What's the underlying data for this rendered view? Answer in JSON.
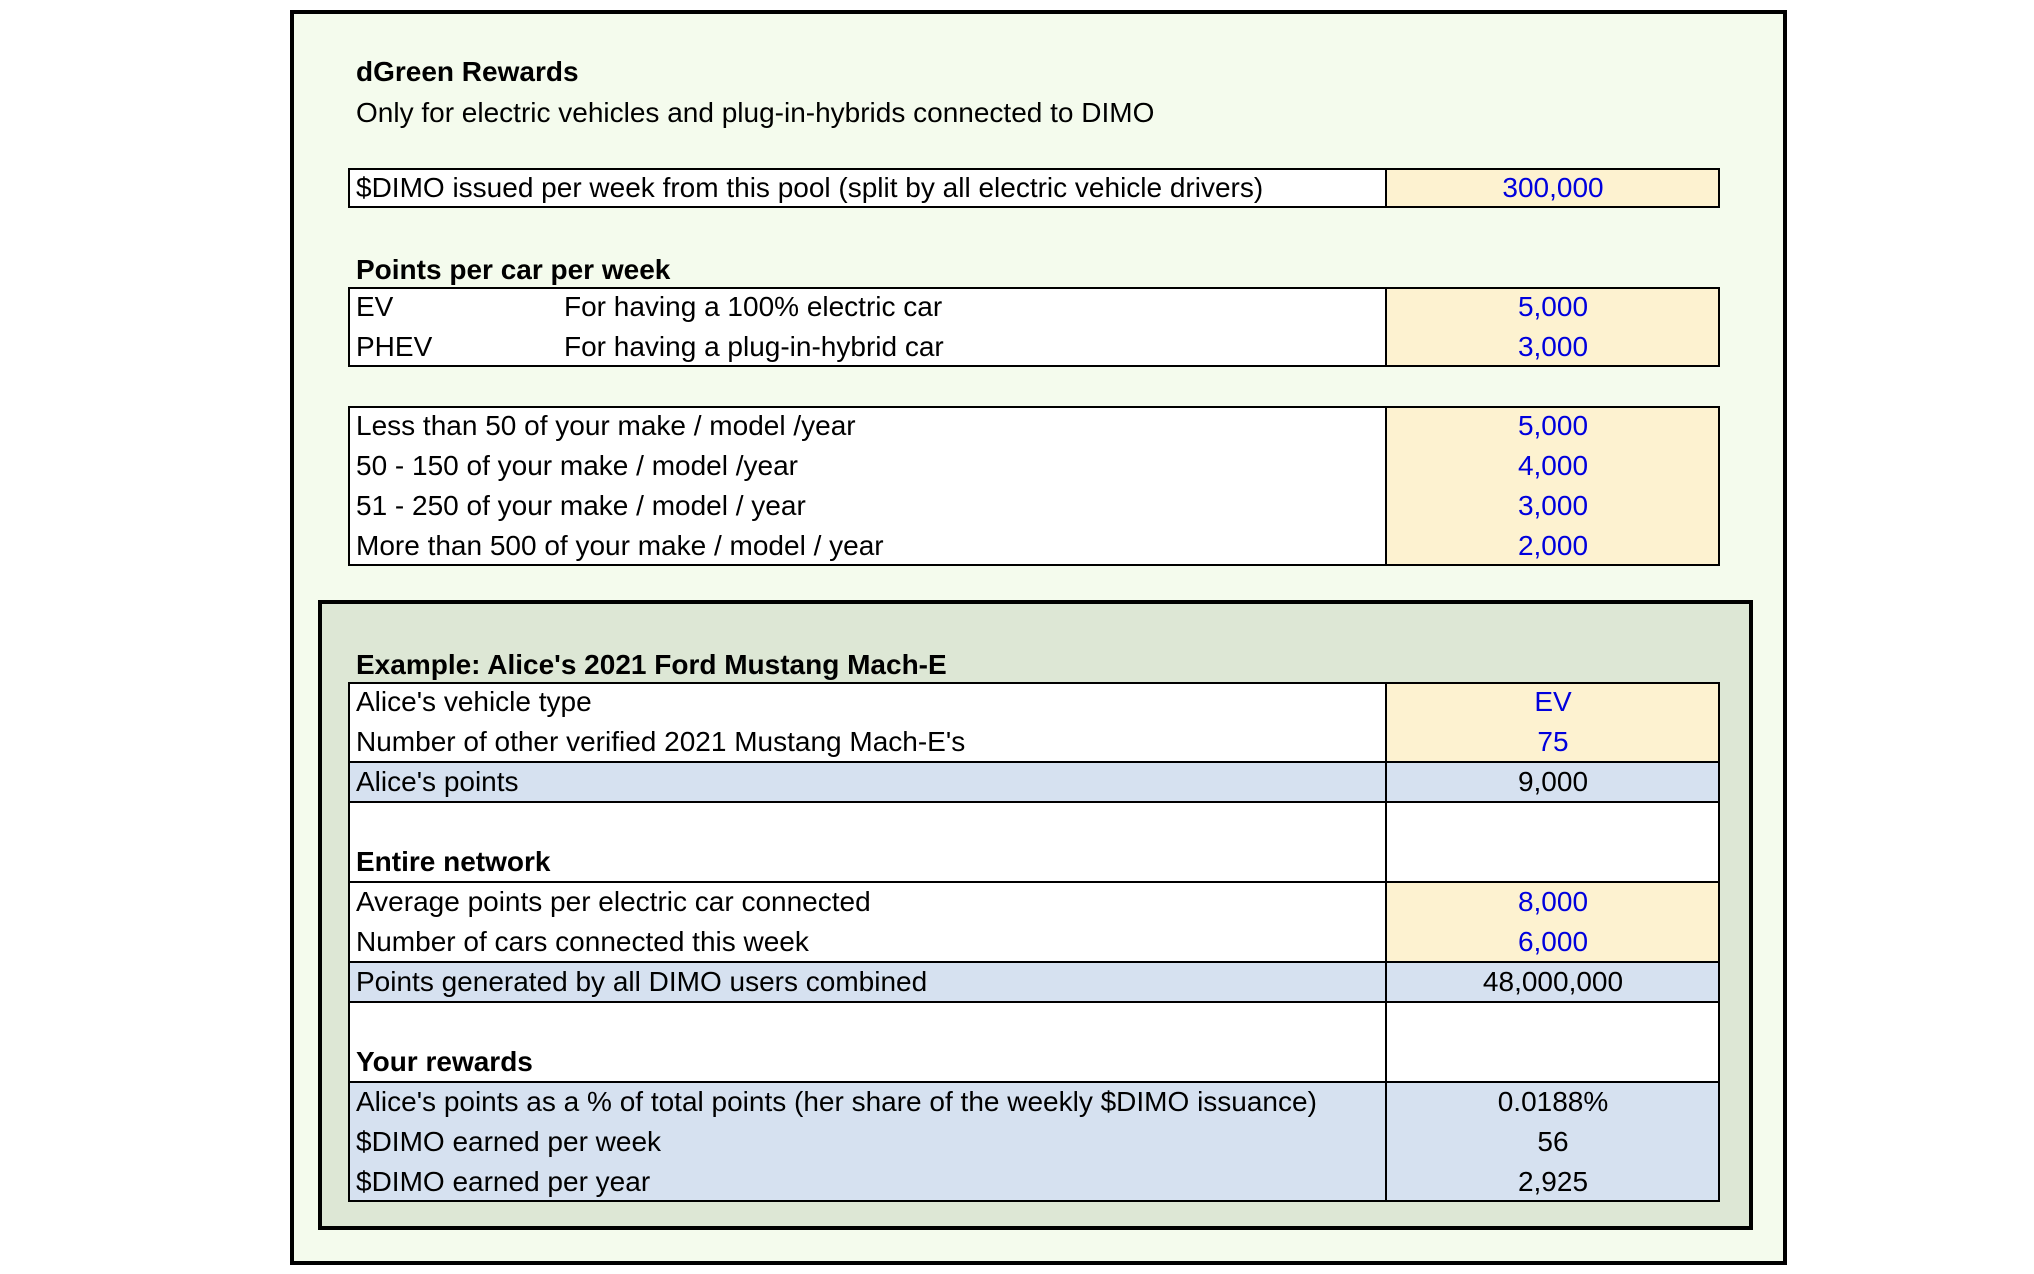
{
  "title": "dGreen Rewards",
  "subtitle": "Only for electric vehicles and plug-in-hybrids connected to DIMO",
  "pool": {
    "label": "$DIMO issued per week from this pool (split by all electric vehicle drivers)",
    "value": "300,000"
  },
  "points_section": {
    "heading": "Points per car per week",
    "rows": [
      {
        "code": "EV",
        "desc": "For having a 100% electric car",
        "value": "5,000"
      },
      {
        "code": "PHEV",
        "desc": "For having a plug-in-hybrid car",
        "value": "3,000"
      }
    ]
  },
  "rarity": {
    "rows": [
      {
        "label": "Less than 50 of your make / model /year",
        "value": "5,000"
      },
      {
        "label": "50 - 150 of your make / model /year",
        "value": "4,000"
      },
      {
        "label": "51 - 250 of your make / model / year",
        "value": "3,000"
      },
      {
        "label": "More than 500 of your make / model / year",
        "value": "2,000"
      }
    ]
  },
  "example": {
    "heading": "Example: Alice's 2021 Ford Mustang Mach-E",
    "vehicle_type_label": "Alice's vehicle type",
    "vehicle_type_value": "EV",
    "others_label": "Number of other verified 2021 Mustang Mach-E's",
    "others_value": "75",
    "points_label": "Alice's points",
    "points_value": "9,000",
    "network_heading": "Entire network",
    "avg_label": "Average points per electric car connected",
    "avg_value": "8,000",
    "cars_label": "Number of cars connected this week",
    "cars_value": "6,000",
    "total_label": "Points generated by all DIMO users combined",
    "total_value": "48,000,000",
    "rewards_heading": "Your rewards",
    "share_label": "Alice's points as a % of total points (her share of the weekly $DIMO issuance)",
    "share_value": "0.0188%",
    "week_label": "$DIMO earned per week",
    "week_value": "56",
    "year_label": "$DIMO earned per year",
    "year_value": "2,925"
  },
  "colors": {
    "outer_bg": "#f4fbed",
    "example_bg": "#dde7d5",
    "input_bg": "#fdf2d0",
    "calc_bg": "#d6e1f0",
    "input_text": "#0000dd"
  }
}
